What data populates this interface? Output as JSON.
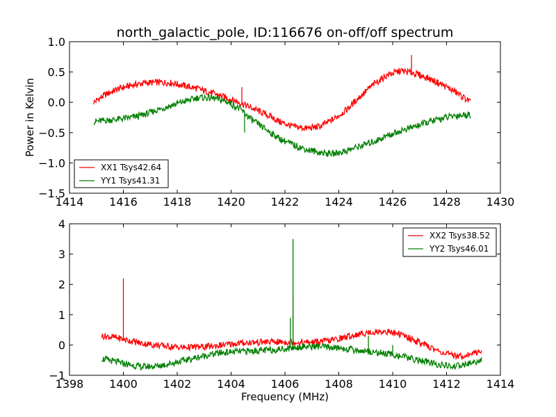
{
  "chart_data": [
    {
      "type": "line",
      "title": "north_galactic_pole, ID:116676 on-off/off spectrum",
      "xlabel": "",
      "ylabel": "Power in Kelvin",
      "xlim": [
        1414,
        1430
      ],
      "ylim": [
        -1.5,
        1.0
      ],
      "xticks": [
        1414,
        1416,
        1418,
        1420,
        1422,
        1424,
        1426,
        1428,
        1430
      ],
      "xtick_labels": [
        "1414",
        "1416",
        "1418",
        "1420",
        "1422",
        "1424",
        "1426",
        "1428",
        "1430"
      ],
      "yticks": [
        -1.5,
        -1.0,
        -0.5,
        0.0,
        0.5,
        1.0
      ],
      "ytick_labels": [
        "−1.5",
        "−1.0",
        "−0.5",
        "0.0",
        "0.5",
        "1.0"
      ],
      "grid": false,
      "legend_position": "lower-left",
      "series": [
        {
          "name": "XX1 Tsys42.64",
          "color": "#ff0000",
          "x": [
            1414.9,
            1415.3,
            1415.8,
            1416.3,
            1416.8,
            1417.3,
            1417.8,
            1418.3,
            1418.8,
            1419.3,
            1419.8,
            1420.3,
            1420.8,
            1421.3,
            1421.8,
            1422.3,
            1422.8,
            1423.3,
            1423.8,
            1424.3,
            1424.8,
            1425.3,
            1425.8,
            1426.3,
            1426.8,
            1427.3,
            1427.8,
            1428.3,
            1428.9
          ],
          "y": [
            0.0,
            0.12,
            0.22,
            0.28,
            0.32,
            0.33,
            0.32,
            0.27,
            0.22,
            0.15,
            0.08,
            0.0,
            -0.1,
            -0.2,
            -0.32,
            -0.4,
            -0.43,
            -0.4,
            -0.28,
            -0.12,
            0.1,
            0.3,
            0.45,
            0.52,
            0.48,
            0.4,
            0.3,
            0.18,
            0.0
          ],
          "spikes": [
            {
              "x": 1426.7,
              "y": 0.78
            },
            {
              "x": 1420.4,
              "y": 0.25
            }
          ]
        },
        {
          "name": "YY1 Tsys41.31",
          "color": "#007f00",
          "x": [
            1414.9,
            1415.3,
            1415.8,
            1416.3,
            1416.8,
            1417.3,
            1417.8,
            1418.3,
            1418.8,
            1419.3,
            1419.8,
            1420.3,
            1420.8,
            1421.3,
            1421.8,
            1422.3,
            1422.8,
            1423.3,
            1423.8,
            1424.3,
            1424.8,
            1425.3,
            1425.8,
            1426.3,
            1426.8,
            1427.3,
            1427.8,
            1428.3,
            1428.9
          ],
          "y": [
            -0.32,
            -0.3,
            -0.28,
            -0.25,
            -0.2,
            -0.12,
            -0.05,
            0.02,
            0.08,
            0.07,
            0.02,
            -0.1,
            -0.3,
            -0.45,
            -0.6,
            -0.7,
            -0.78,
            -0.83,
            -0.85,
            -0.8,
            -0.72,
            -0.65,
            -0.55,
            -0.47,
            -0.4,
            -0.33,
            -0.27,
            -0.22,
            -0.2
          ],
          "spikes": [
            {
              "x": 1420.5,
              "y": -0.5
            }
          ]
        }
      ]
    },
    {
      "type": "line",
      "title": "",
      "xlabel": "Frequency (MHz)",
      "ylabel": "",
      "xlim": [
        1398,
        1414
      ],
      "ylim": [
        -1,
        4
      ],
      "xticks": [
        1398,
        1400,
        1402,
        1404,
        1406,
        1408,
        1410,
        1412,
        1414
      ],
      "xtick_labels": [
        "1398",
        "1400",
        "1402",
        "1404",
        "1406",
        "1408",
        "1410",
        "1412",
        "1414"
      ],
      "yticks": [
        -1,
        0,
        1,
        2,
        3,
        4
      ],
      "ytick_labels": [
        "−1",
        "0",
        "1",
        "2",
        "3",
        "4"
      ],
      "grid": false,
      "legend_position": "top-right",
      "series": [
        {
          "name": "XX2 Tsys38.52",
          "color": "#ff0000",
          "x": [
            1399.2,
            1399.7,
            1400.2,
            1400.7,
            1401.2,
            1401.7,
            1402.2,
            1402.7,
            1403.2,
            1403.7,
            1404.2,
            1404.7,
            1405.2,
            1405.7,
            1406.2,
            1406.7,
            1407.2,
            1407.7,
            1408.2,
            1408.7,
            1409.2,
            1409.7,
            1410.2,
            1410.7,
            1411.2,
            1411.7,
            1412.2,
            1412.7,
            1413.3
          ],
          "y": [
            0.3,
            0.25,
            0.15,
            0.05,
            0.0,
            -0.05,
            -0.08,
            -0.07,
            -0.05,
            0.0,
            0.05,
            0.08,
            0.1,
            0.1,
            0.1,
            0.08,
            0.1,
            0.15,
            0.25,
            0.35,
            0.42,
            0.45,
            0.38,
            0.2,
            0.0,
            -0.2,
            -0.35,
            -0.35,
            -0.2
          ],
          "spikes": [
            {
              "x": 1400.0,
              "y": 2.2
            },
            {
              "x": 1406.3,
              "y": 1.6
            }
          ]
        },
        {
          "name": "YY2 Tsys46.01",
          "color": "#007f00",
          "x": [
            1399.2,
            1399.7,
            1400.2,
            1400.7,
            1401.2,
            1401.7,
            1402.2,
            1402.7,
            1403.2,
            1403.7,
            1404.2,
            1404.7,
            1405.2,
            1405.7,
            1406.2,
            1406.7,
            1407.2,
            1407.7,
            1408.2,
            1408.7,
            1409.2,
            1409.7,
            1410.2,
            1410.7,
            1411.2,
            1411.7,
            1412.2,
            1412.7,
            1413.3
          ],
          "y": [
            -0.45,
            -0.55,
            -0.65,
            -0.72,
            -0.7,
            -0.62,
            -0.52,
            -0.42,
            -0.32,
            -0.25,
            -0.22,
            -0.2,
            -0.18,
            -0.15,
            -0.1,
            -0.05,
            -0.05,
            -0.08,
            -0.12,
            -0.18,
            -0.22,
            -0.28,
            -0.35,
            -0.45,
            -0.55,
            -0.65,
            -0.72,
            -0.65,
            -0.5
          ],
          "spikes": [
            {
              "x": 1406.3,
              "y": 3.5
            },
            {
              "x": 1406.2,
              "y": 0.9
            },
            {
              "x": 1409.1,
              "y": 0.3
            },
            {
              "x": 1410.0,
              "y": 0.0
            }
          ]
        }
      ]
    }
  ]
}
